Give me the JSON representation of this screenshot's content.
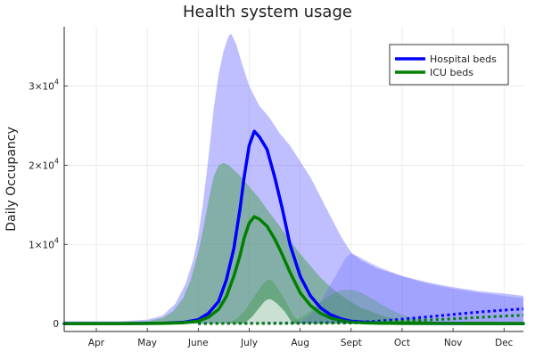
{
  "chart_data": {
    "type": "line",
    "title": "Health system usage",
    "ylabel": "Daily Occupancy",
    "xlabel": "",
    "grid": true,
    "legend_position": "top-right",
    "x_ticks": [
      "Apr",
      "May",
      "June",
      "July",
      "Aug",
      "Sept",
      "Oct",
      "Nov",
      "Dec"
    ],
    "x_tick_pos": [
      1,
      2,
      3,
      4,
      5,
      6,
      7,
      8,
      9
    ],
    "xlim": [
      0.37,
      9.38
    ],
    "ylim": [
      -1000,
      37500
    ],
    "y_ticks": [
      {
        "value": 0,
        "label": "0"
      },
      {
        "value": 10000,
        "label": "1×10",
        "exp": "4"
      },
      {
        "value": 20000,
        "label": "2×10",
        "exp": "4"
      },
      {
        "value": 30000,
        "label": "3×10",
        "exp": "4"
      }
    ],
    "colors": {
      "hospital": "#0000ff",
      "icu": "#008000",
      "band_hospital": "#6666ff",
      "band_icu": "#339933"
    },
    "series": [
      {
        "name": "Hospital beds",
        "color": "#0000ff",
        "style": "solid",
        "x": [
          0.37,
          1.5,
          2.3,
          2.7,
          3.0,
          3.2,
          3.4,
          3.55,
          3.7,
          3.82,
          3.9,
          4.0,
          4.1,
          4.2,
          4.35,
          4.5,
          4.65,
          4.8,
          5.0,
          5.2,
          5.4,
          5.6,
          5.8,
          6.0,
          6.3,
          6.6,
          7.0,
          9.38
        ],
        "values": [
          0,
          0,
          50,
          150,
          500,
          1300,
          2800,
          5500,
          9500,
          14500,
          18500,
          22500,
          24300,
          23600,
          22000,
          18500,
          14500,
          10000,
          6000,
          3500,
          2000,
          1100,
          600,
          300,
          150,
          60,
          30,
          0
        ]
      },
      {
        "name": "ICU beds",
        "color": "#008000",
        "style": "solid",
        "x": [
          0.37,
          1.5,
          2.3,
          2.7,
          3.0,
          3.2,
          3.4,
          3.55,
          3.7,
          3.82,
          3.9,
          4.0,
          4.1,
          4.2,
          4.35,
          4.5,
          4.65,
          4.8,
          5.0,
          5.2,
          5.4,
          5.6,
          5.8,
          6.0,
          6.3,
          6.6,
          7.0,
          9.38
        ],
        "values": [
          0,
          0,
          30,
          90,
          300,
          800,
          1800,
          3400,
          6000,
          8600,
          10800,
          12700,
          13500,
          13200,
          12300,
          10700,
          8700,
          6500,
          3900,
          2300,
          1300,
          700,
          380,
          180,
          80,
          40,
          20,
          0
        ]
      },
      {
        "style": "dotted",
        "color": "#0000ff",
        "x": [
          3.0,
          4.0,
          5.0,
          6.0,
          6.5,
          7.0,
          7.5,
          8.0,
          8.5,
          9.0,
          9.38
        ],
        "values": [
          0,
          20,
          60,
          150,
          300,
          550,
          850,
          1150,
          1450,
          1700,
          1850
        ]
      },
      {
        "style": "dotted",
        "color": "#008000",
        "x": [
          3.0,
          4.0,
          5.0,
          6.0,
          6.5,
          7.0,
          7.5,
          8.0,
          8.5,
          9.0,
          9.38
        ],
        "values": [
          0,
          10,
          30,
          70,
          150,
          280,
          450,
          600,
          780,
          950,
          1050
        ]
      }
    ],
    "bands": [
      {
        "color": "#6666ff",
        "opacity": 0.42,
        "x": [
          0.37,
          1.5,
          2.0,
          2.3,
          2.55,
          2.75,
          2.9,
          3.0,
          3.1,
          3.2,
          3.3,
          3.4,
          3.5,
          3.6,
          3.65,
          3.75,
          3.85,
          4.0,
          4.2,
          4.4,
          4.6,
          4.8,
          5.0,
          5.2,
          5.4,
          5.6,
          5.8,
          6.0,
          6.2,
          6.5,
          7.0,
          7.5,
          8.0,
          8.5,
          9.0,
          9.38
        ],
        "upper": [
          300,
          300,
          500,
          1000,
          2500,
          5000,
          8000,
          11000,
          15500,
          21000,
          27000,
          31500,
          34500,
          36400,
          36600,
          35200,
          33000,
          30000,
          27500,
          26000,
          24000,
          22500,
          20500,
          18500,
          16000,
          13500,
          11000,
          9000,
          8000,
          7000,
          6000,
          5200,
          4600,
          4100,
          3800,
          3500
        ],
        "lower": [
          0,
          0,
          0,
          0,
          0,
          0,
          0,
          0,
          0,
          0,
          0,
          0,
          0,
          0,
          0,
          0,
          0,
          0,
          0,
          0,
          0,
          0,
          0,
          0,
          0,
          0,
          0,
          0,
          0,
          0,
          0,
          0,
          0,
          0,
          0,
          0
        ]
      },
      {
        "color": "#339933",
        "opacity": 0.42,
        "x": [
          0.37,
          1.5,
          2.0,
          2.3,
          2.5,
          2.7,
          2.85,
          3.0,
          3.1,
          3.2,
          3.3,
          3.4,
          3.5,
          3.6,
          3.8,
          4.0,
          4.2,
          4.4,
          4.6,
          4.8,
          5.0,
          5.2,
          5.4,
          5.6,
          5.8,
          6.0,
          6.2,
          6.4,
          6.6,
          6.8,
          7.0,
          7.5,
          8.0,
          9.38
        ],
        "upper": [
          200,
          200,
          300,
          700,
          1500,
          3200,
          5500,
          9000,
          12000,
          15500,
          18500,
          20000,
          20300,
          20000,
          18800,
          17300,
          15800,
          14000,
          12300,
          10500,
          8800,
          7300,
          5800,
          4600,
          3600,
          2700,
          2000,
          1500,
          1000,
          700,
          400,
          150,
          50,
          0
        ],
        "lower": [
          0,
          0,
          0,
          0,
          0,
          0,
          0,
          0,
          0,
          0,
          0,
          0,
          0,
          0,
          0,
          0,
          0,
          0,
          0,
          0,
          0,
          0,
          0,
          0,
          0,
          0,
          0,
          0,
          0,
          0,
          0,
          0,
          0,
          0
        ]
      },
      {
        "color": "#6666ff",
        "opacity": 0.32,
        "x": [
          4.8,
          5.0,
          5.2,
          5.4,
          5.6,
          5.8,
          5.9,
          6.0,
          6.1,
          6.2,
          6.4,
          6.6,
          6.8,
          7.0,
          7.3,
          7.6,
          8.0,
          8.5,
          9.0,
          9.38
        ],
        "upper": [
          0,
          300,
          1200,
          2800,
          5000,
          7200,
          8400,
          8800,
          8600,
          8300,
          7600,
          7000,
          6500,
          6000,
          5400,
          4900,
          4400,
          3900,
          3500,
          3200
        ],
        "lower": [
          0,
          0,
          0,
          0,
          0,
          0,
          0,
          0,
          0,
          0,
          0,
          0,
          0,
          0,
          0,
          0,
          0,
          0,
          0,
          0
        ]
      },
      {
        "color": "#339933",
        "opacity": 0.28,
        "x": [
          4.6,
          4.8,
          5.0,
          5.2,
          5.4,
          5.6,
          5.8,
          6.0,
          6.2,
          6.4,
          6.6,
          6.8,
          7.0,
          7.3,
          7.6,
          8.0
        ],
        "upper": [
          0,
          200,
          700,
          1600,
          2700,
          3600,
          4200,
          4300,
          3900,
          3200,
          2400,
          1700,
          1100,
          600,
          250,
          0
        ],
        "lower": [
          0,
          0,
          0,
          0,
          0,
          0,
          0,
          0,
          0,
          0,
          0,
          0,
          0,
          0,
          0,
          0
        ]
      },
      {
        "color": "#339933",
        "opacity": 0.32,
        "x": [
          3.55,
          3.75,
          3.9,
          4.05,
          4.2,
          4.3,
          4.38,
          4.45,
          4.55,
          4.7,
          4.85,
          5.0
        ],
        "upper": [
          0,
          600,
          1500,
          3000,
          4400,
          5200,
          5600,
          5400,
          4600,
          3000,
          1200,
          0
        ],
        "lower": [
          0,
          0,
          0,
          0,
          0,
          0,
          0,
          0,
          0,
          0,
          0,
          0
        ]
      },
      {
        "color": "#ffffff",
        "opacity": 0.65,
        "x": [
          3.9,
          4.05,
          4.2,
          4.3,
          4.38,
          4.45,
          4.55,
          4.7,
          4.85
        ],
        "upper": [
          0,
          800,
          2000,
          2800,
          3100,
          3000,
          2500,
          1500,
          0
        ],
        "lower": [
          0,
          0,
          0,
          0,
          0,
          0,
          0,
          0,
          0
        ]
      }
    ]
  }
}
